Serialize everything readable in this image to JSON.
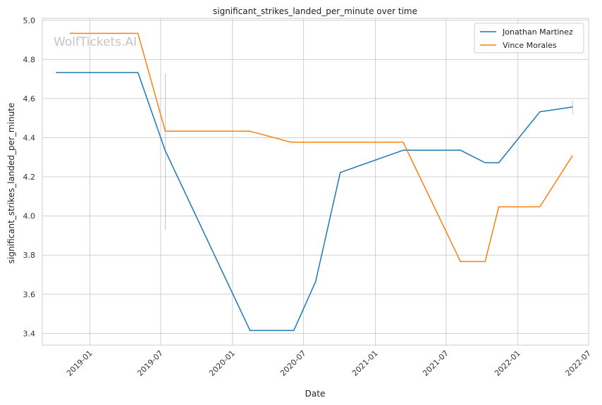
{
  "watermark": "WolfTickets.AI",
  "chart_data": {
    "type": "line",
    "title": "significant_strikes_landed_per_minute over time",
    "xlabel": "Date",
    "ylabel": "significant_strikes_landed_per_minute",
    "x_axis_type": "date",
    "xlim": [
      "2018-09-01",
      "2022-07-01"
    ],
    "ylim": [
      3.34,
      5.01
    ],
    "x_ticks": [
      "2019-01",
      "2019-07",
      "2020-01",
      "2020-07",
      "2021-01",
      "2021-07",
      "2022-01",
      "2022-07"
    ],
    "y_ticks": [
      3.4,
      3.6,
      3.8,
      4.0,
      4.2,
      4.4,
      4.6,
      4.8,
      5.0
    ],
    "grid": true,
    "legend_position": "top-right",
    "series": [
      {
        "name": "Jonathan Martinez",
        "color": "#1f77b4",
        "points": [
          {
            "x": "2018-10-06",
            "y": 4.733
          },
          {
            "x": "2019-05-04",
            "y": 4.733
          },
          {
            "x": "2019-07-13",
            "y": 4.333
          },
          {
            "x": "2020-02-15",
            "y": 3.415
          },
          {
            "x": "2020-06-06",
            "y": 3.415
          },
          {
            "x": "2020-08-01",
            "y": 3.665
          },
          {
            "x": "2020-10-03",
            "y": 4.222
          },
          {
            "x": "2021-03-13",
            "y": 4.336
          },
          {
            "x": "2021-08-07",
            "y": 4.336
          },
          {
            "x": "2021-10-09",
            "y": 4.272
          },
          {
            "x": "2021-11-13",
            "y": 4.272
          },
          {
            "x": "2022-02-26",
            "y": 4.532
          },
          {
            "x": "2022-05-21",
            "y": 4.557
          }
        ]
      },
      {
        "name": "Vince Morales",
        "color": "#ff7f0e",
        "points": [
          {
            "x": "2018-11-10",
            "y": 4.933
          },
          {
            "x": "2019-05-04",
            "y": 4.933
          },
          {
            "x": "2019-07-13",
            "y": 4.433
          },
          {
            "x": "2020-02-15",
            "y": 4.433
          },
          {
            "x": "2020-05-30",
            "y": 4.377
          },
          {
            "x": "2021-03-13",
            "y": 4.377
          },
          {
            "x": "2021-08-07",
            "y": 3.767
          },
          {
            "x": "2021-10-09",
            "y": 3.767
          },
          {
            "x": "2021-11-13",
            "y": 4.047
          },
          {
            "x": "2022-02-26",
            "y": 4.047
          },
          {
            "x": "2022-05-21",
            "y": 4.309
          }
        ]
      }
    ],
    "error_bars": [
      {
        "x": "2019-07-13",
        "y_low": 3.93,
        "y_high": 4.73,
        "color": "#1f77b4"
      },
      {
        "x": "2022-05-21",
        "y_low": 4.52,
        "y_high": 4.59,
        "color": "#1f77b4"
      }
    ]
  }
}
